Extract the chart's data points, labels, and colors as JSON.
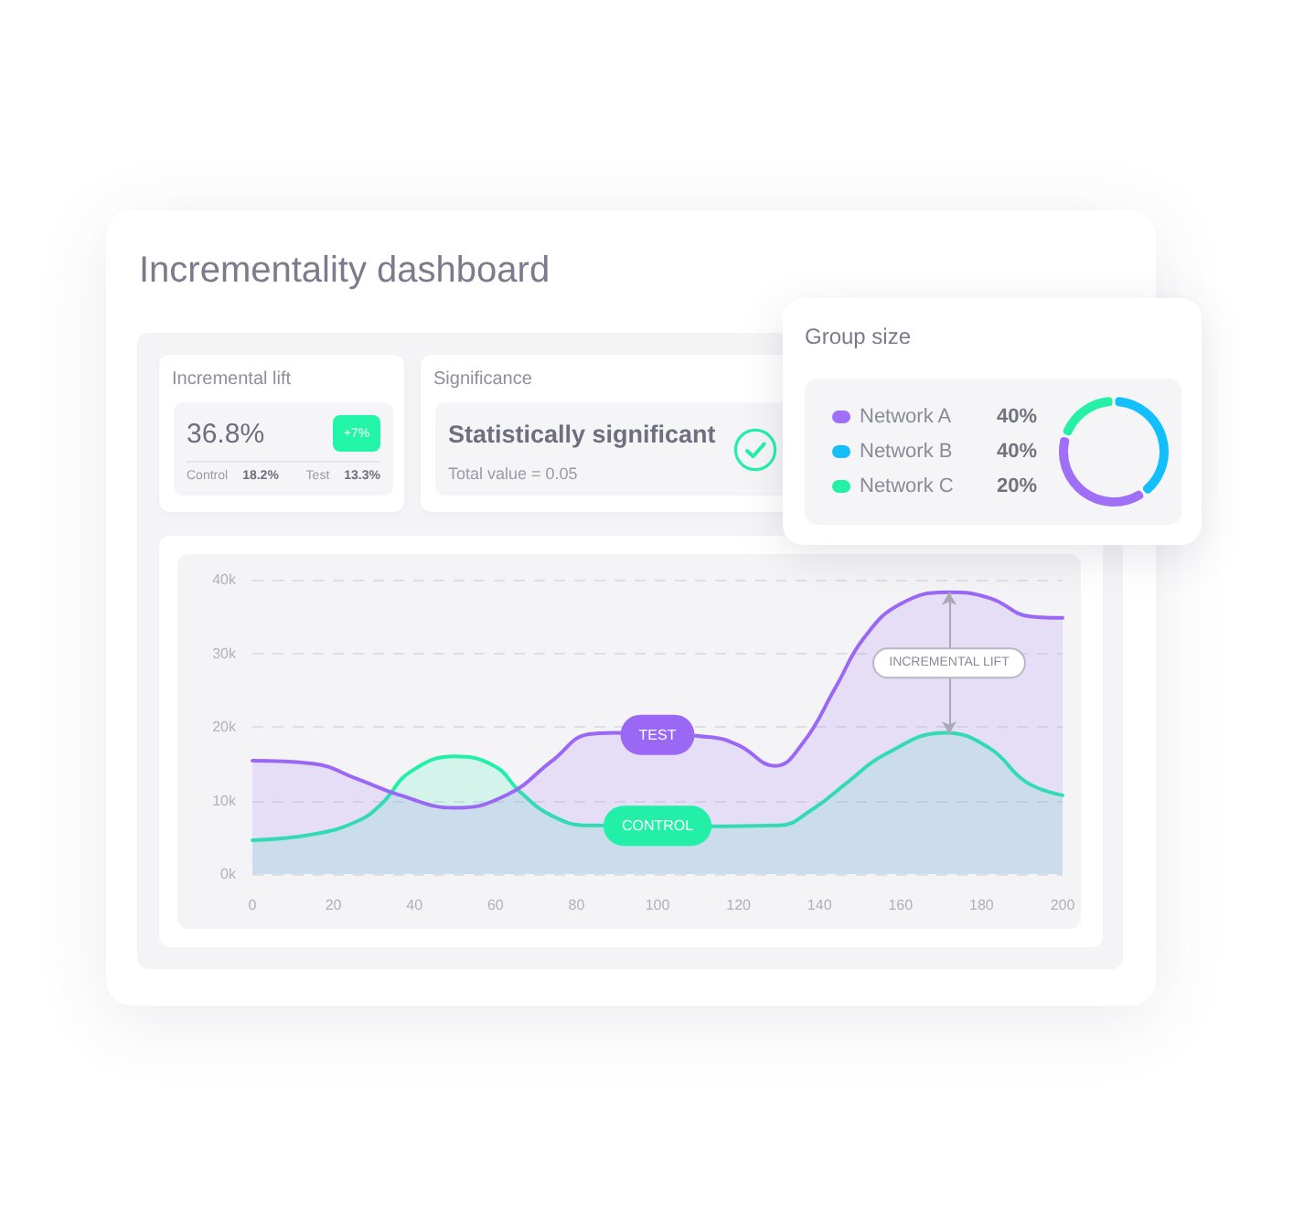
{
  "chart_data": [
    {
      "type": "other",
      "title": "Incrementality dashboard"
    },
    {
      "type": "other",
      "title": "Incremental lift",
      "annotations": [
        "36.8%",
        "+7%",
        "Control",
        "18.2%",
        "Test",
        "13.3%"
      ]
    },
    {
      "type": "other",
      "title": "Significance",
      "annotations": [
        "Statistically significant",
        "Total value = 0.05"
      ]
    },
    {
      "type": "donut",
      "title": "Group size",
      "categories": [
        "Network A",
        "Network B",
        "Network C"
      ],
      "values": [
        40,
        40,
        20
      ],
      "value_labels": [
        "40%",
        "40%",
        "20%"
      ],
      "colors": [
        "#9f6ff8",
        "#12bffa",
        "#24f0a6"
      ],
      "legend": "left"
    },
    {
      "type": "area",
      "xlim": [
        0,
        200
      ],
      "xticks": [
        0,
        20,
        40,
        60,
        80,
        100,
        120,
        140,
        160,
        180,
        200
      ],
      "ylim": [
        0,
        40000
      ],
      "yticks": [
        {
          "value": 0,
          "label": "0k"
        },
        {
          "value": 10000,
          "label": "10k"
        },
        {
          "value": 20000,
          "label": "20k"
        },
        {
          "value": 30000,
          "label": "30k"
        },
        {
          "value": 40000,
          "label": "40k"
        }
      ],
      "grid": "y",
      "series": [
        {
          "name": "TEST",
          "color": "#9a68f5",
          "x": [
            0,
            15,
            26,
            36,
            50,
            63,
            74,
            83,
            89,
            113,
            120,
            129,
            136,
            144,
            151,
            160,
            172,
            182,
            192,
            200
          ],
          "values": [
            15400,
            15000,
            12900,
            10800,
            9000,
            10800,
            15400,
            19000,
            19200,
            18600,
            17500,
            14700,
            17900,
            25400,
            32100,
            36700,
            38300,
            37500,
            35000,
            34800
          ]
        },
        {
          "name": "CONTROL",
          "color": "#22f0a8",
          "x": [
            0,
            15,
            26,
            32,
            39,
            50,
            60,
            66,
            74,
            83,
            117,
            130,
            138,
            147,
            156,
            171,
            182,
            191,
            200
          ],
          "values": [
            4600,
            5400,
            7200,
            9600,
            13900,
            16000,
            14600,
            11200,
            7900,
            6600,
            6500,
            6600,
            8700,
            12500,
            16200,
            19200,
            17100,
            12500,
            10700
          ]
        }
      ],
      "annotations": [
        "INCREMENTAL LIFT"
      ]
    }
  ]
}
